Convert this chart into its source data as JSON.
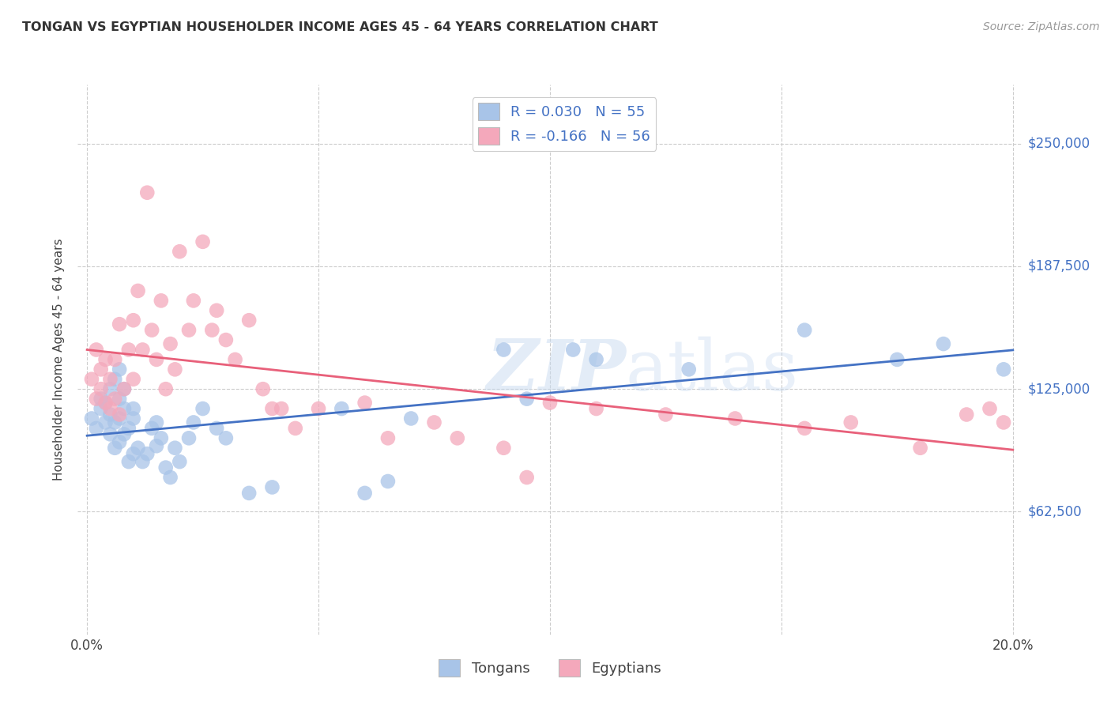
{
  "title": "TONGAN VS EGYPTIAN HOUSEHOLDER INCOME AGES 45 - 64 YEARS CORRELATION CHART",
  "source": "Source: ZipAtlas.com",
  "ylabel": "Householder Income Ages 45 - 64 years",
  "xlim": [
    -0.002,
    0.202
  ],
  "ylim": [
    0,
    280000
  ],
  "yticks": [
    62500,
    125000,
    187500,
    250000
  ],
  "ytick_labels": [
    "$62,500",
    "$125,000",
    "$187,500",
    "$250,000"
  ],
  "tongan_R": 0.03,
  "tongan_N": 55,
  "egyptian_R": -0.166,
  "egyptian_N": 56,
  "tongan_color": "#a8c4e8",
  "egyptian_color": "#f4a8bb",
  "line_tongan_color": "#4472c4",
  "line_egyptian_color": "#e8607a",
  "watermark_color": "#c8daf0",
  "background_color": "#ffffff",
  "grid_color": "#cccccc",
  "tongan_x": [
    0.001,
    0.002,
    0.003,
    0.003,
    0.004,
    0.004,
    0.005,
    0.005,
    0.005,
    0.006,
    0.006,
    0.006,
    0.007,
    0.007,
    0.007,
    0.007,
    0.008,
    0.008,
    0.008,
    0.009,
    0.009,
    0.01,
    0.01,
    0.01,
    0.011,
    0.012,
    0.013,
    0.014,
    0.015,
    0.015,
    0.016,
    0.017,
    0.018,
    0.019,
    0.02,
    0.022,
    0.023,
    0.025,
    0.028,
    0.03,
    0.035,
    0.04,
    0.055,
    0.06,
    0.065,
    0.07,
    0.09,
    0.095,
    0.105,
    0.11,
    0.13,
    0.155,
    0.175,
    0.185,
    0.198
  ],
  "tongan_y": [
    110000,
    105000,
    115000,
    120000,
    108000,
    118000,
    102000,
    112000,
    125000,
    95000,
    108000,
    130000,
    98000,
    110000,
    120000,
    135000,
    102000,
    115000,
    125000,
    88000,
    105000,
    92000,
    110000,
    115000,
    95000,
    88000,
    92000,
    105000,
    96000,
    108000,
    100000,
    85000,
    80000,
    95000,
    88000,
    100000,
    108000,
    115000,
    105000,
    100000,
    72000,
    75000,
    115000,
    72000,
    78000,
    110000,
    145000,
    120000,
    145000,
    140000,
    135000,
    155000,
    140000,
    148000,
    135000
  ],
  "egyptian_x": [
    0.001,
    0.002,
    0.002,
    0.003,
    0.003,
    0.004,
    0.004,
    0.005,
    0.005,
    0.006,
    0.006,
    0.007,
    0.007,
    0.008,
    0.009,
    0.01,
    0.01,
    0.011,
    0.012,
    0.013,
    0.014,
    0.015,
    0.016,
    0.017,
    0.018,
    0.019,
    0.02,
    0.022,
    0.023,
    0.025,
    0.027,
    0.028,
    0.03,
    0.032,
    0.035,
    0.038,
    0.04,
    0.042,
    0.045,
    0.05,
    0.06,
    0.065,
    0.075,
    0.08,
    0.09,
    0.095,
    0.1,
    0.11,
    0.125,
    0.14,
    0.155,
    0.165,
    0.18,
    0.19,
    0.195,
    0.198
  ],
  "egyptian_y": [
    130000,
    120000,
    145000,
    125000,
    135000,
    118000,
    140000,
    115000,
    130000,
    120000,
    140000,
    112000,
    158000,
    125000,
    145000,
    130000,
    160000,
    175000,
    145000,
    225000,
    155000,
    140000,
    170000,
    125000,
    148000,
    135000,
    195000,
    155000,
    170000,
    200000,
    155000,
    165000,
    150000,
    140000,
    160000,
    125000,
    115000,
    115000,
    105000,
    115000,
    118000,
    100000,
    108000,
    100000,
    95000,
    80000,
    118000,
    115000,
    112000,
    110000,
    105000,
    108000,
    95000,
    112000,
    115000,
    108000
  ]
}
